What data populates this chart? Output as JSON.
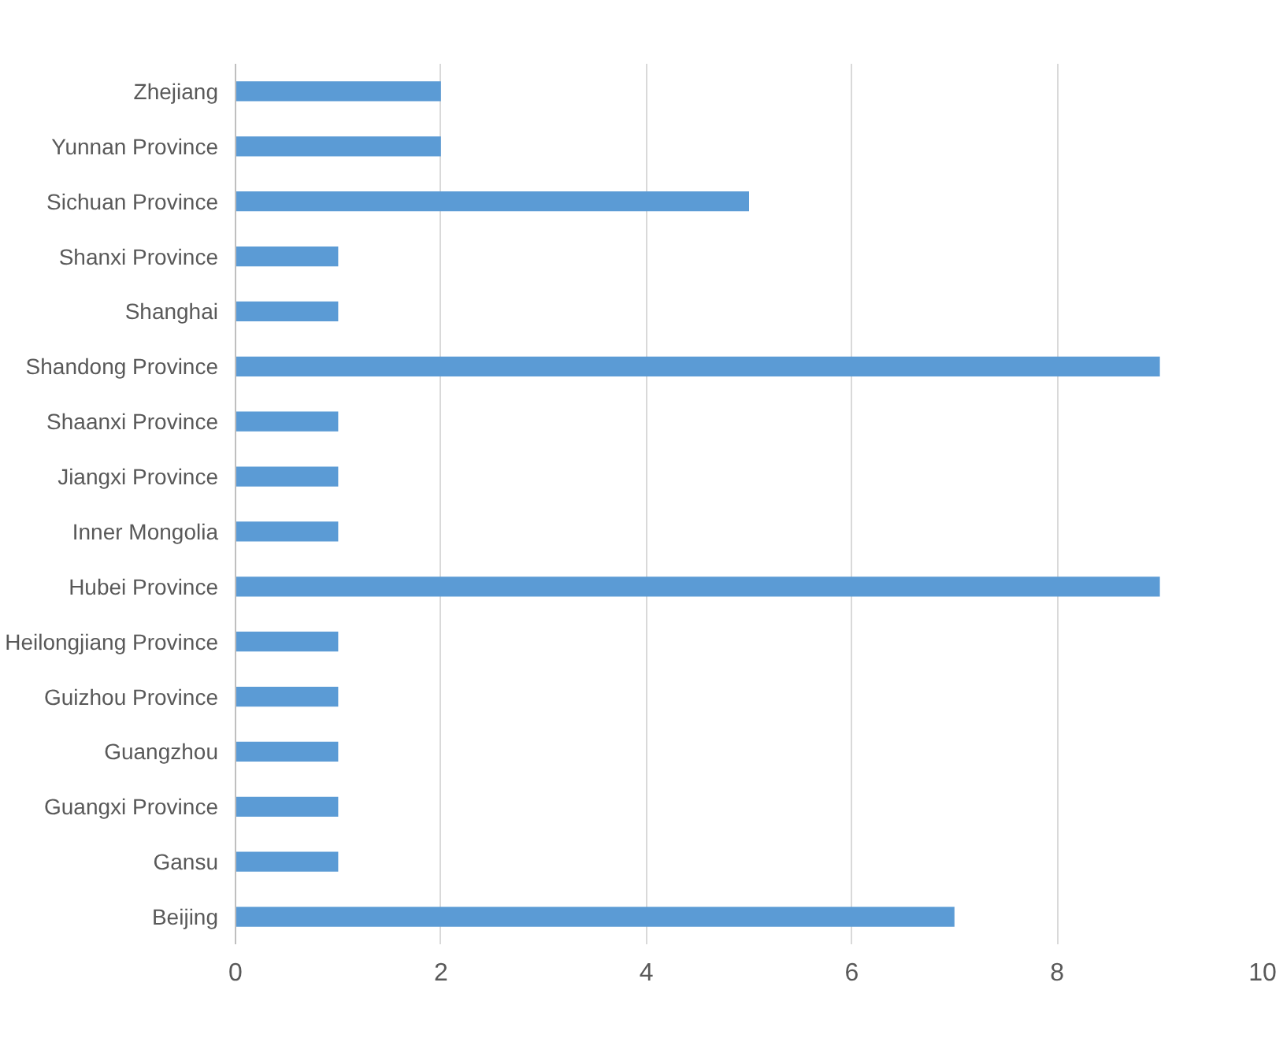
{
  "chart_data": {
    "type": "bar",
    "orientation": "horizontal",
    "categories": [
      "Zhejiang",
      "Yunnan Province",
      "Sichuan Province",
      "Shanxi Province",
      "Shanghai",
      "Shandong Province",
      "Shaanxi Province",
      "Jiangxi Province",
      "Inner Mongolia",
      "Hubei Province",
      "Heilongjiang Province",
      "Guizhou Province",
      "Guangzhou",
      "Guangxi Province",
      "Gansu",
      "Beijing"
    ],
    "values": [
      2,
      2,
      5,
      1,
      1,
      9,
      1,
      1,
      1,
      9,
      1,
      1,
      1,
      1,
      1,
      7
    ],
    "color": "#5b9bd5",
    "xlim": [
      0,
      10
    ],
    "xticks": [
      0,
      2,
      4,
      6,
      8,
      10
    ],
    "grid": "x"
  }
}
